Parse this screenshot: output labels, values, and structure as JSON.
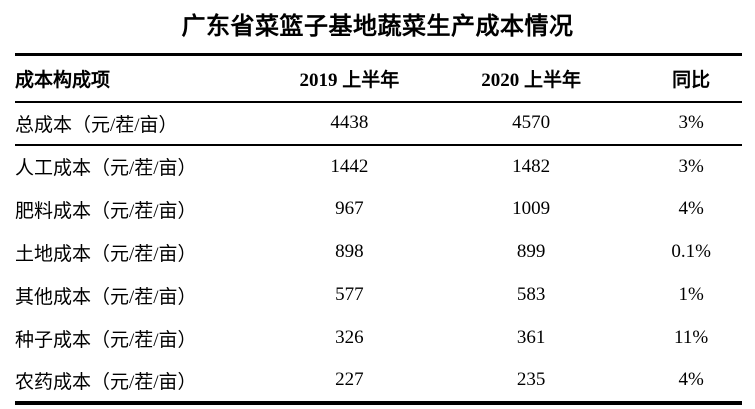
{
  "chart_data": {
    "type": "table",
    "title": "广东省菜篮子基地蔬菜生产成本情况",
    "columns": [
      "成本构成项",
      "2019 上半年",
      "2020 上半年",
      "同比"
    ],
    "rows": [
      [
        "总成本（元/茬/亩）",
        "4438",
        "4570",
        "3%"
      ],
      [
        "人工成本（元/茬/亩）",
        "1442",
        "1482",
        "3%"
      ],
      [
        "肥料成本（元/茬/亩）",
        "967",
        "1009",
        "4%"
      ],
      [
        "土地成本（元/茬/亩）",
        "898",
        "899",
        "0.1%"
      ],
      [
        "其他成本（元/茬/亩）",
        "577",
        "583",
        "1%"
      ],
      [
        "种子成本（元/茬/亩）",
        "326",
        "361",
        "11%"
      ],
      [
        "农药成本（元/茬/亩）",
        "227",
        "235",
        "4%"
      ]
    ],
    "layout": {
      "border_style": "three-line-table",
      "text_color": "#000000",
      "background_color": "#ffffff"
    }
  }
}
